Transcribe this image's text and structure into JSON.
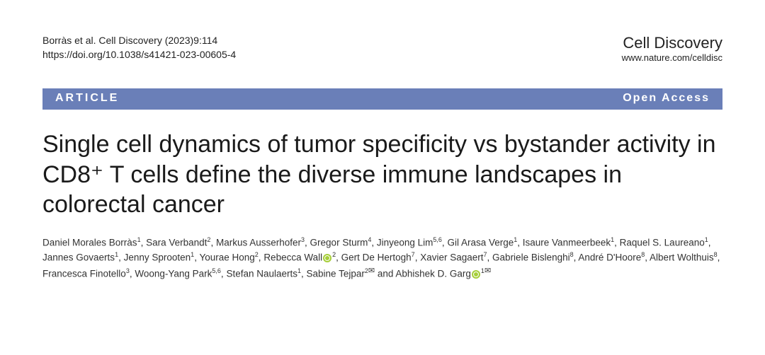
{
  "header": {
    "citation": "Borràs et al. Cell Discovery (2023)9:114",
    "doi": "https://doi.org/10.1038/s41421-023-00605-4",
    "journal_name": "Cell Discovery",
    "journal_url": "www.nature.com/celldisc"
  },
  "banner": {
    "left": "ARTICLE",
    "right": "Open Access",
    "bg_color": "#6a7fb8",
    "text_color": "#ffffff"
  },
  "title": "Single cell dynamics of tumor specificity vs bystander activity in CD8⁺ T cells define the diverse immune landscapes in colorectal cancer",
  "authors": [
    {
      "name": "Daniel Morales Borràs",
      "aff": "1"
    },
    {
      "name": "Sara Verbandt",
      "aff": "2"
    },
    {
      "name": "Markus Ausserhofer",
      "aff": "3"
    },
    {
      "name": "Gregor Sturm",
      "aff": "4"
    },
    {
      "name": "Jinyeong Lim",
      "aff": "5,6"
    },
    {
      "name": "Gil Arasa Verge",
      "aff": "1"
    },
    {
      "name": "Isaure Vanmeerbeek",
      "aff": "1"
    },
    {
      "name": "Raquel S. Laureano",
      "aff": "1"
    },
    {
      "name": "Jannes Govaerts",
      "aff": "1"
    },
    {
      "name": "Jenny Sprooten",
      "aff": "1"
    },
    {
      "name": "Yourae Hong",
      "aff": "2"
    },
    {
      "name": "Rebecca Wall",
      "aff": "2",
      "orcid": true
    },
    {
      "name": "Gert De Hertogh",
      "aff": "7"
    },
    {
      "name": "Xavier Sagaert",
      "aff": "7"
    },
    {
      "name": "Gabriele Bislenghi",
      "aff": "8"
    },
    {
      "name": "André D'Hoore",
      "aff": "8"
    },
    {
      "name": "Albert Wolthuis",
      "aff": "8"
    },
    {
      "name": "Francesca Finotello",
      "aff": "3"
    },
    {
      "name": "Woong-Yang Park",
      "aff": "5,6"
    },
    {
      "name": "Stefan Naulaerts",
      "aff": "1"
    },
    {
      "name": "Sabine Tejpar",
      "aff": "2",
      "corresponding": true
    },
    {
      "name": "Abhishek D. Garg",
      "aff": "1",
      "orcid": true,
      "corresponding": true
    }
  ],
  "styling": {
    "page_bg": "#ffffff",
    "title_fontsize": 34,
    "author_fontsize": 13.5,
    "orcid_color": "#a6ce39"
  }
}
